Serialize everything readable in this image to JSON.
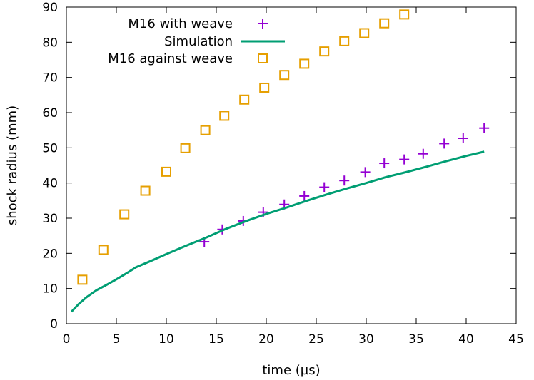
{
  "chart_data": {
    "type": "scatter",
    "xlabel": "time (µs)",
    "ylabel": "shock radius (mm)",
    "xlim": [
      0,
      45
    ],
    "ylim": [
      0,
      90
    ],
    "xticks": [
      "0",
      "5",
      "10",
      "15",
      "20",
      "25",
      "30",
      "35",
      "40",
      "45"
    ],
    "yticks": [
      "0",
      "10",
      "20",
      "30",
      "40",
      "50",
      "60",
      "70",
      "80",
      "90"
    ],
    "grid": false,
    "legend_position": "top-left",
    "series": [
      {
        "name": "M16 with weave",
        "kind": "points",
        "marker": "plus",
        "color": "#9400d3",
        "x": [
          13.8,
          15.6,
          17.7,
          19.7,
          21.8,
          23.8,
          25.8,
          27.8,
          29.9,
          31.8,
          33.8,
          35.7,
          37.8,
          39.7,
          41.8
        ],
        "y": [
          23.3,
          26.8,
          29.2,
          31.7,
          33.9,
          36.3,
          38.8,
          40.7,
          43.1,
          45.6,
          46.7,
          48.3,
          51.2,
          52.7,
          55.6
        ]
      },
      {
        "name": "Simulation",
        "kind": "line",
        "color": "#009e73",
        "x": [
          0.5,
          1.2,
          2.0,
          3.0,
          4.0,
          5.0,
          6.0,
          7.0,
          8.5,
          10.0,
          12.0,
          14.0,
          16.0,
          18.0,
          20.0,
          22.0,
          24.0,
          26.0,
          28.0,
          30.0,
          32.0,
          34.0,
          36.0,
          38.0,
          40.0,
          41.8
        ],
        "y": [
          3.4,
          5.5,
          7.5,
          9.5,
          11.0,
          12.6,
          14.3,
          16.1,
          17.9,
          19.8,
          22.2,
          24.5,
          27.0,
          29.2,
          31.2,
          33.0,
          34.9,
          36.7,
          38.4,
          40.0,
          41.7,
          43.1,
          44.6,
          46.2,
          47.7,
          48.9
        ]
      },
      {
        "name": "M16 against weave",
        "kind": "points",
        "marker": "square",
        "color": "#e69f00",
        "x": [
          1.6,
          3.7,
          5.8,
          7.9,
          10.0,
          11.9,
          13.9,
          15.8,
          17.8,
          19.8,
          21.8,
          23.8,
          25.8,
          27.8,
          29.8,
          31.8,
          33.8
        ],
        "y": [
          12.5,
          21.0,
          31.1,
          37.8,
          43.2,
          49.9,
          55.0,
          59.1,
          63.7,
          67.1,
          70.7,
          73.9,
          77.4,
          80.3,
          82.6,
          85.4,
          87.9
        ]
      }
    ]
  }
}
